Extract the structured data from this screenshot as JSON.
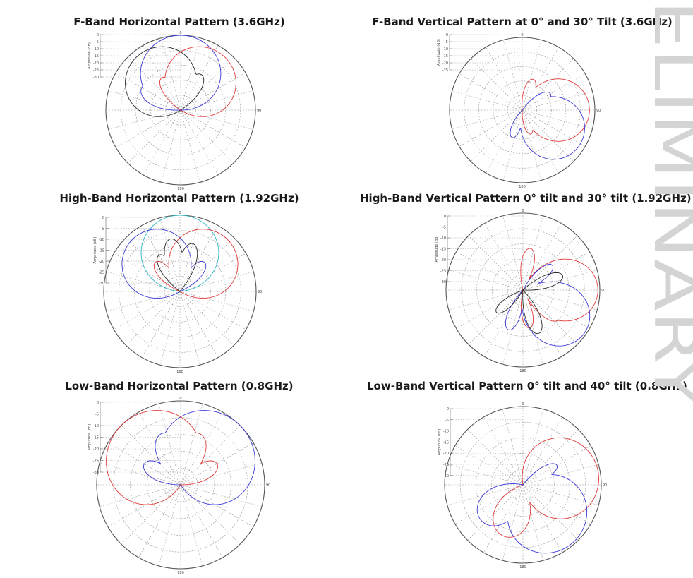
{
  "watermark": {
    "text": "ELIMINARY",
    "color": "#d4d4d4"
  },
  "colors": {
    "black": "#2a2a2a",
    "blue": "#3a3ad8",
    "red": "#e03a3a",
    "cyan": "#2bb8c8",
    "grid": "#9a9a9a"
  },
  "chart_data": [
    {
      "type": "polar",
      "title": "F-Band Horizontal Pattern (3.6GHz)",
      "ylabel": "Amplitude (dB)",
      "r_ticks": [
        "0",
        "-5",
        "-10",
        "-15",
        "-20",
        "-25",
        "-30"
      ],
      "angle_labels": [
        "0",
        "90",
        "180"
      ],
      "r_range_db": [
        -40,
        0
      ],
      "series": [
        {
          "color": "blue",
          "lobes": [
            [
              0,
              0,
              30
            ],
            [
              -60,
              -16,
              14
            ],
            [
              40,
              -20,
              12
            ]
          ]
        },
        {
          "color": "black",
          "lobes": [
            [
              -35,
              -3,
              30
            ],
            [
              0,
              -14,
              10
            ],
            [
              30,
              -18,
              12
            ],
            [
              -70,
              -20,
              12
            ]
          ]
        },
        {
          "color": "red",
          "lobes": [
            [
              35,
              -3,
              30
            ],
            [
              0,
              -16,
              10
            ],
            [
              -30,
              -20,
              12
            ],
            [
              70,
              -22,
              12
            ]
          ]
        }
      ]
    },
    {
      "type": "polar",
      "title": "F-Band Vertical Pattern at 0° and 30° Tilt (3.6GHz)",
      "ylabel": "Amplitude (dB)",
      "r_ticks": [
        "0",
        "-5",
        "-10",
        "-15",
        "-20",
        "-25"
      ],
      "angle_labels": [
        "0",
        "90",
        "180"
      ],
      "r_range_db": [
        -40,
        0
      ],
      "series": [
        {
          "color": "red",
          "lobes": [
            [
              90,
              -3,
              26
            ],
            [
              20,
              -22,
              12
            ],
            [
              160,
              -26,
              12
            ]
          ]
        },
        {
          "color": "blue",
          "lobes": [
            [
              120,
              -3,
              26
            ],
            [
              60,
              -22,
              12
            ],
            [
              200,
              -24,
              12
            ]
          ]
        }
      ]
    },
    {
      "type": "polar",
      "title": "High-Band Horizontal Pattern (1.92GHz)",
      "ylabel": "Amplitude (dB)",
      "r_ticks": [
        "0",
        "-5",
        "-10",
        "-15",
        "-20",
        "-25",
        "-30"
      ],
      "angle_labels": [
        "0",
        "90",
        "180"
      ],
      "r_range_db": [
        -40,
        0
      ],
      "series": [
        {
          "color": "cyan",
          "lobes": [
            [
              0,
              0,
              28
            ],
            [
              -50,
              -18,
              12
            ],
            [
              50,
              -20,
              12
            ]
          ]
        },
        {
          "color": "blue",
          "lobes": [
            [
              -40,
              -3,
              28
            ],
            [
              0,
              -14,
              10
            ],
            [
              40,
              -20,
              12
            ],
            [
              -80,
              -22,
              12
            ]
          ]
        },
        {
          "color": "red",
          "lobes": [
            [
              40,
              -3,
              28
            ],
            [
              0,
              -16,
              10
            ],
            [
              -40,
              -20,
              12
            ],
            [
              80,
              -22,
              12
            ]
          ]
        },
        {
          "color": "black",
          "lobes": [
            [
              -10,
              -12,
              10
            ],
            [
              15,
              -14,
              10
            ],
            [
              -30,
              -18,
              10
            ]
          ]
        }
      ]
    },
    {
      "type": "polar",
      "title": "High-Band Vertical Pattern 0° tilt and 30° tilt (1.92GHz)",
      "ylabel": "Amplitude (dB)",
      "r_ticks": [
        "0",
        "-5",
        "-10",
        "-15",
        "-20",
        "-25",
        "-30"
      ],
      "angle_labels": [
        "0",
        "90",
        "180"
      ],
      "r_range_db": [
        -40,
        0
      ],
      "series": [
        {
          "color": "red",
          "lobes": [
            [
              90,
              -1,
              22
            ],
            [
              10,
              -18,
              10
            ],
            [
              170,
              -20,
              10
            ],
            [
              130,
              -16,
              10
            ]
          ]
        },
        {
          "color": "blue",
          "lobes": [
            [
              125,
              -1,
              22
            ],
            [
              50,
              -20,
              10
            ],
            [
              200,
              -18,
              10
            ]
          ]
        },
        {
          "color": "black",
          "lobes": [
            [
              70,
              -18,
              10
            ],
            [
              160,
              -16,
              10
            ],
            [
              230,
              -22,
              10
            ]
          ]
        }
      ]
    },
    {
      "type": "polar",
      "title": "Low-Band Horizontal Pattern (0.8GHz)",
      "ylabel": "Amplitude (dB)",
      "r_ticks": [
        "0",
        "-5",
        "-10",
        "-15",
        "-20",
        "-25",
        "-30"
      ],
      "angle_labels": [
        "0",
        "90",
        "180"
      ],
      "r_range_db": [
        -40,
        0
      ],
      "series": [
        {
          "color": "blue",
          "lobes": [
            [
              45,
              0,
              34
            ],
            [
              -20,
              -14,
              14
            ],
            [
              100,
              -16,
              16
            ],
            [
              -60,
              -20,
              14
            ]
          ]
        },
        {
          "color": "red",
          "lobes": [
            [
              -45,
              0,
              34
            ],
            [
              20,
              -14,
              14
            ],
            [
              -100,
              -16,
              16
            ],
            [
              60,
              -20,
              14
            ]
          ]
        }
      ]
    },
    {
      "type": "polar",
      "title": "Low-Band Vertical Pattern 0° tilt and 40° tilt (0.8GHz)",
      "ylabel": "Amplitude (dB)",
      "r_ticks": [
        "0",
        "-5",
        "-10",
        "-15",
        "-20",
        "-25",
        "-30"
      ],
      "angle_labels": [
        "0",
        "90",
        "180"
      ],
      "r_range_db": [
        -40,
        0
      ],
      "series": [
        {
          "color": "red",
          "lobes": [
            [
              80,
              -1,
              30
            ],
            [
              200,
              -12,
              20
            ],
            [
              20,
              -22,
              10
            ]
          ]
        },
        {
          "color": "blue",
          "lobes": [
            [
              140,
              -1,
              30
            ],
            [
              230,
              -12,
              20
            ],
            [
              60,
              -20,
              10
            ]
          ]
        }
      ]
    }
  ]
}
